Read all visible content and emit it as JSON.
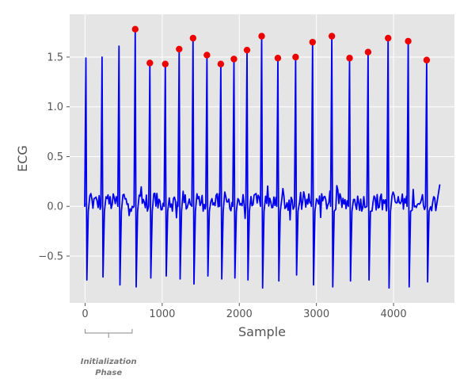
{
  "chart_data": {
    "type": "line",
    "xlabel": "Sample",
    "ylabel": "ECG",
    "xlim": [
      -200,
      4790
    ],
    "ylim": [
      -0.97,
      1.93
    ],
    "x_ticks": [
      0,
      1000,
      2000,
      3000,
      4000
    ],
    "x_tick_labels": [
      "0",
      "1000",
      "2000",
      "3000",
      "4000"
    ],
    "y_ticks": [
      -0.5,
      0.0,
      0.5,
      1.0,
      1.5
    ],
    "y_tick_labels": [
      "−0.5",
      "0.0",
      "0.5",
      "1.0",
      "1.5"
    ],
    "grid": true,
    "background": "#E5E5E5",
    "series": [
      {
        "kind": "line",
        "color": "#0000EE",
        "r_peaks": [
          {
            "x": 10,
            "max": 1.49,
            "min": -0.74
          },
          {
            "x": 220,
            "max": 1.5,
            "min": -0.71
          },
          {
            "x": 440,
            "max": 1.61,
            "min": -0.79
          },
          {
            "x": 650,
            "max": 1.78,
            "min": -0.81
          },
          {
            "x": 840,
            "max": 1.44,
            "min": -0.72
          },
          {
            "x": 1040,
            "max": 1.43,
            "min": -0.7
          },
          {
            "x": 1220,
            "max": 1.58,
            "min": -0.73
          },
          {
            "x": 1400,
            "max": 1.69,
            "min": -0.78
          },
          {
            "x": 1580,
            "max": 1.52,
            "min": -0.7
          },
          {
            "x": 1760,
            "max": 1.43,
            "min": -0.73
          },
          {
            "x": 1930,
            "max": 1.48,
            "min": -0.72
          },
          {
            "x": 2100,
            "max": 1.57,
            "min": -0.74
          },
          {
            "x": 2290,
            "max": 1.71,
            "min": -0.82
          },
          {
            "x": 2500,
            "max": 1.49,
            "min": -0.75
          },
          {
            "x": 2730,
            "max": 1.5,
            "min": -0.69
          },
          {
            "x": 2950,
            "max": 1.65,
            "min": -0.79
          },
          {
            "x": 3200,
            "max": 1.71,
            "min": -0.81
          },
          {
            "x": 3430,
            "max": 1.49,
            "min": -0.75
          },
          {
            "x": 3670,
            "max": 1.55,
            "min": -0.74
          },
          {
            "x": 3930,
            "max": 1.69,
            "min": -0.82
          },
          {
            "x": 4190,
            "max": 1.66,
            "min": -0.81
          },
          {
            "x": 4430,
            "max": 1.47,
            "min": -0.76
          }
        ],
        "end": {
          "x": 4600,
          "y": 0.22
        }
      },
      {
        "kind": "scatter",
        "color": "#EE0000",
        "points": [
          [
            650,
            1.78
          ],
          [
            840,
            1.44
          ],
          [
            1040,
            1.43
          ],
          [
            1220,
            1.58
          ],
          [
            1400,
            1.69
          ],
          [
            1580,
            1.52
          ],
          [
            1760,
            1.43
          ],
          [
            1930,
            1.48
          ],
          [
            2100,
            1.57
          ],
          [
            2290,
            1.71
          ],
          [
            2500,
            1.49
          ],
          [
            2730,
            1.5
          ],
          [
            2950,
            1.65
          ],
          [
            3200,
            1.71
          ],
          [
            3430,
            1.49
          ],
          [
            3670,
            1.55
          ],
          [
            3930,
            1.69
          ],
          [
            4190,
            1.66
          ],
          [
            4430,
            1.47
          ]
        ]
      }
    ],
    "annotation": {
      "lines": [
        "Initialization",
        "Phase"
      ],
      "x_start": 0,
      "x_end": 610
    }
  }
}
